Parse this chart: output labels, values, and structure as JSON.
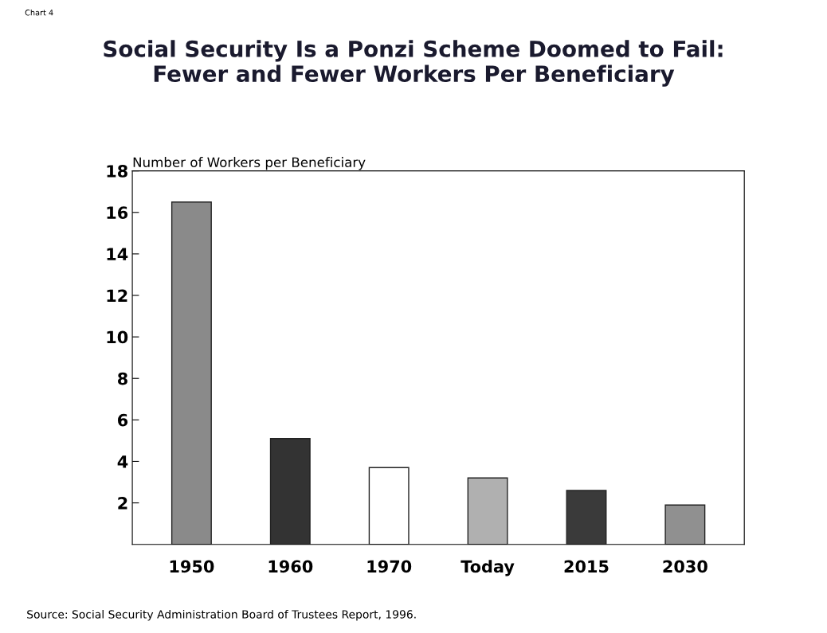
{
  "chart_data": {
    "type": "bar",
    "title": "Social Security Is a Ponzi Scheme Doomed to Fail:\nFewer and Fewer Workers Per Beneficiary",
    "ylabel": "Number of Workers per Beneficiary",
    "categories": [
      "1950",
      "1960",
      "1970",
      "Today",
      "2015",
      "2030"
    ],
    "values": [
      16.5,
      5.1,
      3.7,
      3.2,
      2.6,
      1.9
    ],
    "colors": [
      "#8a8a8a",
      "#333333",
      "#ffffff",
      "#b0b0b0",
      "#3a3a3a",
      "#909090"
    ],
    "ylim": [
      0,
      18
    ],
    "yticks": [
      2,
      4,
      6,
      8,
      10,
      12,
      14,
      16,
      18
    ],
    "grid": false,
    "annotations": [
      "Chart 4",
      "Source: Social Security Administration Board of Trustees Report, 1996."
    ]
  }
}
